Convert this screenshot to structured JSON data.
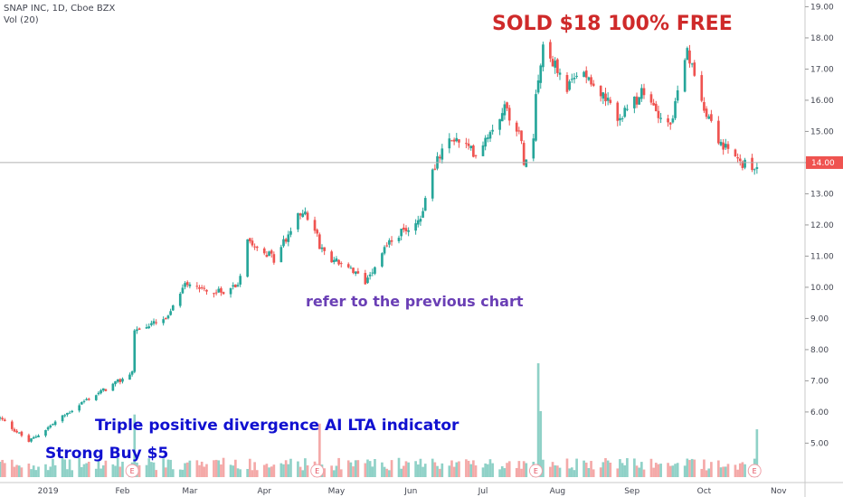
{
  "header": {
    "symbol_line": "SNAP INC, 1D, Cboe BZX",
    "volume_line": "Vol (20)"
  },
  "annotations": {
    "sold": "SOLD $18 100% FREE",
    "refer": "refer to the previous chart",
    "triple": "Triple positive divergence AI LTA indicator",
    "strong_buy": "Strong Buy $5"
  },
  "colors": {
    "up": "#26a69a",
    "down": "#ef5350",
    "vol_up": "#8fd1c7",
    "vol_down": "#f4a9a8",
    "sold_text": "#cf2a2a",
    "refer_text": "#6a3fb5",
    "blue_text": "#1010d0",
    "price_tag": "#ef5350"
  },
  "chart_data": {
    "type": "candlestick",
    "y_axis": {
      "ticks": [
        "19.00",
        "18.00",
        "17.00",
        "16.00",
        "15.00",
        "14.00",
        "13.00",
        "12.00",
        "11.00",
        "10.00",
        "9.00",
        "8.00",
        "7.00",
        "6.00",
        "5.00"
      ],
      "min": 4.2,
      "max": 19.1
    },
    "x_axis": {
      "labels": [
        {
          "date": "2019-01-01",
          "label": "2019"
        },
        {
          "date": "2019-02-01",
          "label": "Feb"
        },
        {
          "date": "2019-03-01",
          "label": "Mar"
        },
        {
          "date": "2019-04-01",
          "label": "Apr"
        },
        {
          "date": "2019-05-01",
          "label": "May"
        },
        {
          "date": "2019-06-01",
          "label": "Jun"
        },
        {
          "date": "2019-07-01",
          "label": "Jul"
        },
        {
          "date": "2019-08-01",
          "label": "Aug"
        },
        {
          "date": "2019-09-01",
          "label": "Sep"
        },
        {
          "date": "2019-10-01",
          "label": "Oct"
        },
        {
          "date": "2019-11-01",
          "label": "Nov"
        }
      ],
      "start": "2018-12-12",
      "end": "2019-11-12"
    },
    "last_price": "14.00",
    "earnings_marker": "E",
    "earnings_dates": [
      "2019-02-05",
      "2019-04-23",
      "2019-07-23",
      "2019-10-22"
    ],
    "trend_anchors": [
      {
        "date": "2018-12-12",
        "close": 5.8
      },
      {
        "date": "2018-12-24",
        "close": 5.05
      },
      {
        "date": "2019-01-15",
        "close": 6.3
      },
      {
        "date": "2019-01-31",
        "close": 7.0
      },
      {
        "date": "2019-02-05",
        "close": 7.3
      },
      {
        "date": "2019-02-06",
        "close": 8.6
      },
      {
        "date": "2019-02-20",
        "close": 9.0
      },
      {
        "date": "2019-02-27",
        "close": 10.2
      },
      {
        "date": "2019-03-12",
        "close": 9.8
      },
      {
        "date": "2019-03-21",
        "close": 10.1
      },
      {
        "date": "2019-03-25",
        "close": 11.6
      },
      {
        "date": "2019-04-05",
        "close": 10.9
      },
      {
        "date": "2019-04-17",
        "close": 12.5
      },
      {
        "date": "2019-04-23",
        "close": 11.6
      },
      {
        "date": "2019-04-24",
        "close": 11.2
      },
      {
        "date": "2019-05-13",
        "close": 10.2
      },
      {
        "date": "2019-05-22",
        "close": 11.4
      },
      {
        "date": "2019-06-05",
        "close": 12.2
      },
      {
        "date": "2019-06-10",
        "close": 13.8
      },
      {
        "date": "2019-06-18",
        "close": 14.8
      },
      {
        "date": "2019-06-28",
        "close": 14.3
      },
      {
        "date": "2019-07-10",
        "close": 15.8
      },
      {
        "date": "2019-07-16",
        "close": 15.0
      },
      {
        "date": "2019-07-18",
        "close": 14.1
      },
      {
        "date": "2019-07-22",
        "close": 14.8
      },
      {
        "date": "2019-07-23",
        "close": 16.3
      },
      {
        "date": "2019-07-26",
        "close": 17.8
      },
      {
        "date": "2019-08-05",
        "close": 16.4
      },
      {
        "date": "2019-08-12",
        "close": 17.0
      },
      {
        "date": "2019-08-21",
        "close": 16.0
      },
      {
        "date": "2019-08-27",
        "close": 15.4
      },
      {
        "date": "2019-09-05",
        "close": 16.2
      },
      {
        "date": "2019-09-17",
        "close": 15.2
      },
      {
        "date": "2019-09-24",
        "close": 17.5
      },
      {
        "date": "2019-09-30",
        "close": 16.0
      },
      {
        "date": "2019-10-08",
        "close": 14.6
      },
      {
        "date": "2019-10-14",
        "close": 14.1
      },
      {
        "date": "2019-10-21",
        "close": 13.8
      },
      {
        "date": "2019-10-23",
        "close": 14.0
      }
    ],
    "volume_spikes": [
      {
        "date": "2019-02-06",
        "level": 0.55
      },
      {
        "date": "2019-04-24",
        "level": 0.47
      },
      {
        "date": "2019-07-24",
        "level": 1.0
      },
      {
        "date": "2019-07-25",
        "level": 0.58
      },
      {
        "date": "2019-10-23",
        "level": 0.42
      }
    ]
  }
}
